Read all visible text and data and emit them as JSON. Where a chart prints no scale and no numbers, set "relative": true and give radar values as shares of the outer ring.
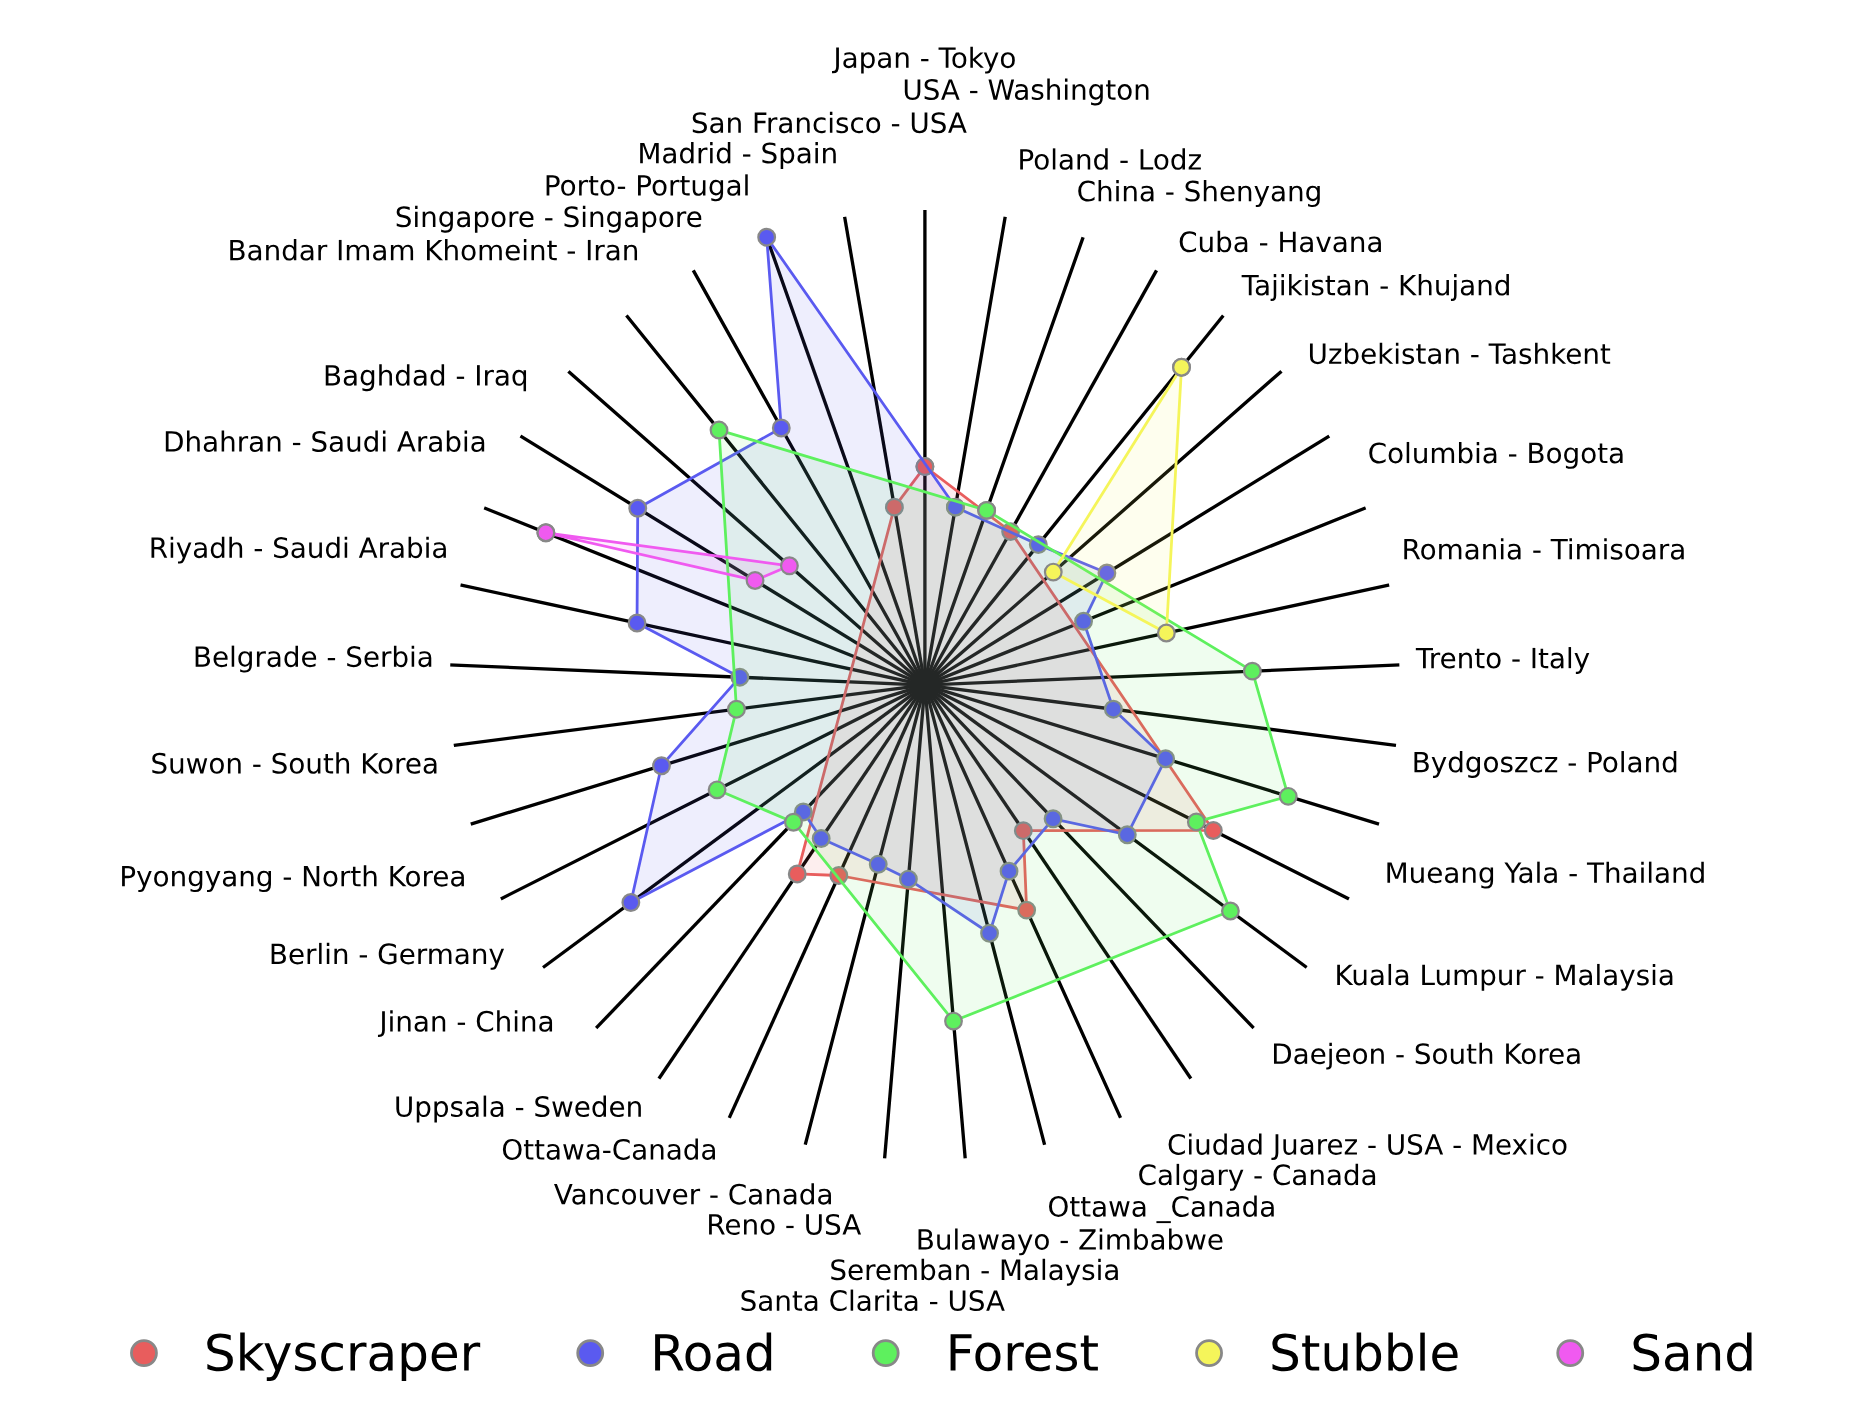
{
  "chart_data": {
    "type": "radar",
    "relative": true,
    "grid": "x",
    "legend": "bottom",
    "marker": "circle",
    "categories": [
      "Japan - Tokyo",
      "USA - Washington",
      "Poland - Lodz",
      "China - Shenyang",
      "Cuba - Havana",
      "Tajikistan - Khujand",
      "Uzbekistan - Tashkent",
      "Columbia - Bogota",
      "Romania - Timisoara",
      "Trento - Italy",
      "Bydgoszcz - Poland",
      "Mueang Yala - Thailand",
      "Kuala Lumpur - Malaysia",
      "Daejeon - South Korea",
      "Ciudad Juarez - USA - Mexico",
      "Calgary - Canada",
      "Ottawa _Canada",
      "Bulawayo - Zimbabwe",
      "Seremban - Malaysia",
      "Santa Clarita - USA",
      "Reno - USA",
      "Vancouver - Canada",
      "Ottawa-Canada",
      "Uppsala - Sweden",
      "Jinan - China",
      "Berlin - Germany",
      "Pyongyang - North Korea",
      "Suwon - South Korea",
      "Belgrade - Serbia",
      "Riyadh - Saudi Arabia",
      "Dhahran - Saudi Arabia",
      "Baghdad - Iraq",
      "Bandar Imam Khomeint - Iran",
      "Singapore - Singapore",
      "Porto- Portugal",
      "Madrid - Spain",
      "San Francisco - USA"
    ],
    "series": [
      {
        "name": "Skyscraper",
        "color": "#e85d5d",
        "values": [
          0.46,
          null,
          null,
          0.37,
          null,
          null,
          null,
          null,
          null,
          null,
          null,
          null,
          0.68,
          null,
          null,
          0.37,
          0.52,
          null,
          null,
          null,
          null,
          0.44,
          0.48,
          null,
          null,
          null,
          null,
          null,
          null,
          null,
          null,
          null,
          null,
          null,
          null,
          null,
          0.38
        ]
      },
      {
        "name": "Road",
        "color": "#5a5af0",
        "values": [
          null,
          0.38,
          null,
          null,
          0.38,
          null,
          0.45,
          0.36,
          null,
          null,
          0.4,
          0.53,
          null,
          0.53,
          0.39,
          null,
          0.43,
          0.54,
          null,
          0.41,
          0.39,
          null,
          0.39,
          0.37,
          0.77,
          null,
          0.58,
          null,
          0.39,
          0.62,
          null,
          0.71,
          null,
          null,
          0.62,
          1,
          null
        ]
      },
      {
        "name": "Forest",
        "color": "#5ef05e",
        "values": [
          null,
          null,
          0.39,
          null,
          null,
          null,
          null,
          null,
          null,
          0.69,
          null,
          0.8,
          0.64,
          0.8,
          null,
          null,
          null,
          null,
          0.71,
          null,
          null,
          null,
          null,
          0.4,
          null,
          0.49,
          null,
          0.4,
          null,
          null,
          null,
          null,
          null,
          0.69,
          null,
          null,
          null
        ]
      },
      {
        "name": "Stubble",
        "color": "#f5f55a",
        "values": [
          null,
          null,
          null,
          null,
          0.86,
          0.36,
          null,
          null,
          0.52,
          null,
          null,
          null,
          null,
          null,
          null,
          null,
          null,
          null,
          null,
          null,
          null,
          null,
          null,
          null,
          null,
          null,
          null,
          null,
          null,
          null,
          null,
          null,
          null,
          null,
          null,
          null,
          null
        ]
      },
      {
        "name": "Sand",
        "color": "#f05af0",
        "values": [
          null,
          null,
          null,
          null,
          null,
          null,
          null,
          null,
          null,
          null,
          null,
          null,
          null,
          null,
          null,
          null,
          null,
          null,
          null,
          null,
          null,
          null,
          null,
          null,
          null,
          null,
          null,
          null,
          null,
          null,
          0.86,
          0.42,
          0.38,
          null,
          null,
          null,
          null
        ]
      }
    ]
  }
}
